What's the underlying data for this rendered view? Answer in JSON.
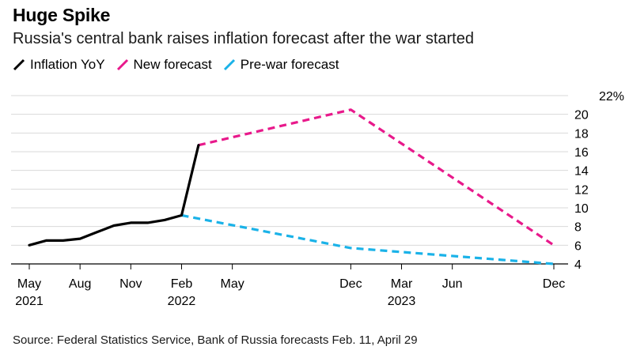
{
  "header": {
    "title": "Huge Spike",
    "subtitle": "Russia's central bank raises inflation forecast after the war started"
  },
  "legend": {
    "items": [
      {
        "label": "Inflation YoY",
        "color": "#000000"
      },
      {
        "label": "New forecast",
        "color": "#e8198b"
      },
      {
        "label": "Pre-war forecast",
        "color": "#1ab2e8"
      }
    ]
  },
  "chart_data": {
    "type": "line",
    "title": "Huge Spike",
    "subtitle": "Russia's central bank raises inflation forecast after the war started",
    "xlabel": "",
    "ylabel": "",
    "y_unit_label": "22%",
    "ylim": [
      4,
      22
    ],
    "y_ticks": [
      4,
      6,
      8,
      10,
      12,
      14,
      16,
      18,
      20
    ],
    "x_start": "2021-05",
    "x_end": "2023-12",
    "x_ticks": [
      {
        "month": 0,
        "label": "May",
        "year": "2021"
      },
      {
        "month": 3,
        "label": "Aug",
        "year": ""
      },
      {
        "month": 6,
        "label": "Nov",
        "year": ""
      },
      {
        "month": 9,
        "label": "Feb",
        "year": "2022"
      },
      {
        "month": 12,
        "label": "May",
        "year": ""
      },
      {
        "month": 19,
        "label": "Dec",
        "year": ""
      },
      {
        "month": 22,
        "label": "Mar",
        "year": "2023"
      },
      {
        "month": 25,
        "label": "Jun",
        "year": ""
      },
      {
        "month": 31,
        "label": "Dec",
        "year": ""
      }
    ],
    "series": [
      {
        "name": "Inflation YoY",
        "color": "#000000",
        "dashed": false,
        "points": [
          {
            "month": 0,
            "value": 6.0
          },
          {
            "month": 1,
            "value": 6.5
          },
          {
            "month": 2,
            "value": 6.5
          },
          {
            "month": 3,
            "value": 6.7
          },
          {
            "month": 4,
            "value": 7.4
          },
          {
            "month": 5,
            "value": 8.1
          },
          {
            "month": 6,
            "value": 8.4
          },
          {
            "month": 7,
            "value": 8.4
          },
          {
            "month": 8,
            "value": 8.7
          },
          {
            "month": 9,
            "value": 9.2
          },
          {
            "month": 10,
            "value": 16.7
          }
        ]
      },
      {
        "name": "New forecast",
        "color": "#e8198b",
        "dashed": true,
        "points": [
          {
            "month": 10,
            "value": 16.7
          },
          {
            "month": 19,
            "value": 20.5
          },
          {
            "month": 31,
            "value": 6.0
          }
        ]
      },
      {
        "name": "Pre-war forecast",
        "color": "#1ab2e8",
        "dashed": true,
        "points": [
          {
            "month": 9,
            "value": 9.2
          },
          {
            "month": 19,
            "value": 5.7
          },
          {
            "month": 31,
            "value": 4.0
          }
        ]
      }
    ]
  },
  "source": "Source: Federal Statistics Service, Bank of Russia forecasts Feb. 11, April 29"
}
